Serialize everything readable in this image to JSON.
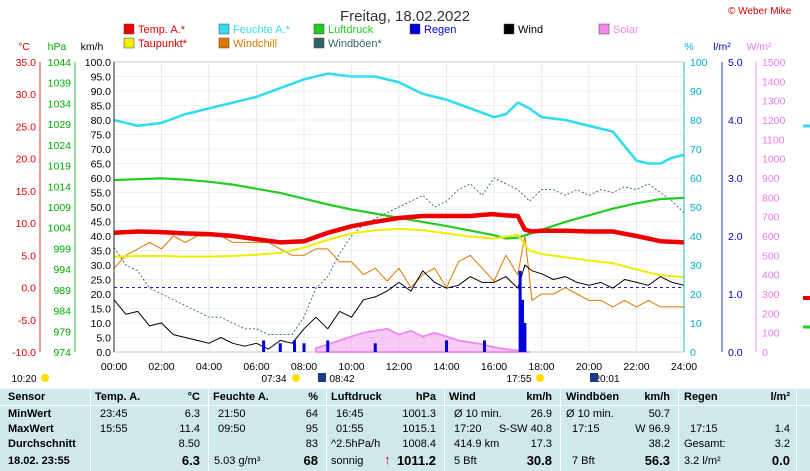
{
  "chart_data": {
    "type": "line",
    "title": "Freitag, 18.02.2022",
    "copyright": "© Weber Mike",
    "unit_labels": {
      "temp": "°C",
      "pressure": "hPa",
      "wind": "km/h",
      "humidity": "%",
      "rain": "l/m²",
      "solar": "W/m²"
    },
    "x_ticks": [
      "00:00",
      "02:00",
      "04:00",
      "06:00",
      "08:00",
      "10:00",
      "12:00",
      "14:00",
      "16:00",
      "18:00",
      "20:00",
      "22:00",
      "24:00"
    ],
    "x_range_hours": [
      0,
      24
    ],
    "axes": {
      "temp": {
        "range": [
          -10,
          35
        ],
        "ticks": [
          "35.0",
          "30.0",
          "25.0",
          "20.0",
          "15.0",
          "10.0",
          "5.0",
          "0.0",
          "-5.0",
          "-10.0"
        ],
        "color": "#dd0000"
      },
      "pressure": {
        "range": [
          974,
          1044
        ],
        "ticks": [
          "1044",
          "1039",
          "1034",
          "1029",
          "1024",
          "1019",
          "1014",
          "1009",
          "1004",
          "999",
          "994",
          "989",
          "984",
          "979",
          "974"
        ],
        "color": "#00aa00"
      },
      "wind": {
        "range": [
          0,
          100
        ],
        "ticks": [
          "100.0",
          "95.0",
          "90.0",
          "85.0",
          "80.0",
          "75.0",
          "70.0",
          "65.0",
          "60.0",
          "55.0",
          "50.0",
          "45.0",
          "40.0",
          "35.0",
          "30.0",
          "25.0",
          "20.0",
          "15.0",
          "10.0",
          "5.0",
          "0.0"
        ],
        "color": "#000000"
      },
      "humidity": {
        "range": [
          0,
          100
        ],
        "ticks": [
          "100",
          "90",
          "80",
          "70",
          "60",
          "50",
          "40",
          "30",
          "20",
          "10",
          "0"
        ],
        "color": "#00aacc"
      },
      "rain": {
        "range": [
          0,
          5
        ],
        "ticks": [
          "5.0",
          "4.0",
          "3.0",
          "2.0",
          "1.0",
          "0.0"
        ],
        "color": "#0000cc"
      },
      "solar": {
        "range": [
          0,
          1500
        ],
        "ticks": [
          "1500",
          "1400",
          "1300",
          "1200",
          "1100",
          "1000",
          "900",
          "800",
          "700",
          "600",
          "500",
          "400",
          "300",
          "200",
          "100",
          "0"
        ],
        "color": "#ee77ee"
      }
    },
    "legend": [
      {
        "name": "Temp. A.*",
        "color": "#ee0000"
      },
      {
        "name": "Feuchte A.*",
        "color": "#33ddee"
      },
      {
        "name": "Luftdruck",
        "color": "#22cc22"
      },
      {
        "name": "Regen",
        "color": "#0000dd"
      },
      {
        "name": "Wind",
        "color": "#000000"
      },
      {
        "name": "Solar",
        "color": "#ee88ee"
      },
      {
        "name": "Taupunkt*",
        "color": "#eeee00"
      },
      {
        "name": "Windchill",
        "color": "#dd7700"
      },
      {
        "name": "Windböen*",
        "color": "#336666"
      }
    ],
    "series": [
      {
        "name": "Temp. A.*",
        "axis": "temp",
        "x": [
          0,
          1,
          2,
          3,
          4,
          5,
          6,
          7,
          8,
          9,
          10,
          11,
          12,
          13,
          14,
          15,
          15.9,
          16.5,
          17,
          17.3,
          17.6,
          18,
          19,
          20,
          21,
          22,
          23,
          24
        ],
        "values": [
          8.5,
          8.7,
          8.6,
          8.4,
          8.3,
          8.0,
          7.5,
          7.0,
          7.2,
          8.5,
          9.5,
          10.2,
          10.8,
          11.1,
          11.1,
          11.1,
          11.4,
          11.2,
          11.1,
          9.0,
          8.7,
          8.8,
          8.8,
          8.7,
          8.7,
          8.0,
          7.2,
          7.0
        ]
      },
      {
        "name": "Feuchte A.*",
        "axis": "humidity",
        "x": [
          0,
          1,
          2,
          3,
          4,
          5,
          6,
          7,
          8,
          9,
          10,
          11,
          12,
          13,
          14,
          15,
          16,
          16.5,
          17,
          17.5,
          18,
          19,
          20,
          21,
          21.6,
          22,
          22.5,
          23,
          23.5,
          24
        ],
        "values": [
          80,
          78,
          79,
          82,
          84,
          86,
          88,
          91,
          94,
          96,
          95,
          95,
          93,
          89,
          87,
          84,
          81,
          82,
          86,
          84,
          81,
          80,
          78,
          76,
          70,
          66,
          65,
          65,
          67,
          68
        ]
      },
      {
        "name": "Luftdruck",
        "axis": "pressure",
        "x": [
          0,
          1,
          2,
          3,
          4,
          5,
          6,
          7,
          8,
          9,
          10,
          11,
          12,
          13,
          14,
          15,
          16,
          16.5,
          17,
          18,
          19,
          20,
          21,
          22,
          23,
          24
        ],
        "values": [
          1015.5,
          1015.7,
          1015.9,
          1015.6,
          1015.1,
          1014.4,
          1013.4,
          1012.4,
          1011.0,
          1009.6,
          1008.4,
          1007.4,
          1006.4,
          1005.4,
          1004.4,
          1003.3,
          1002.2,
          1001.4,
          1001.6,
          1003.5,
          1005.4,
          1007.0,
          1008.6,
          1009.9,
          1010.9,
          1011.2
        ]
      },
      {
        "name": "Taupunkt*",
        "axis": "temp",
        "x": [
          0,
          1,
          2,
          3,
          4,
          5,
          6,
          7,
          8,
          9,
          10,
          11,
          12,
          13,
          14,
          15,
          16,
          17,
          17.5,
          18,
          19,
          20,
          21,
          22,
          23,
          24
        ],
        "values": [
          4.8,
          4.9,
          4.9,
          4.8,
          4.8,
          4.9,
          5.1,
          5.4,
          6.2,
          7.4,
          8.4,
          8.9,
          9.1,
          8.9,
          8.4,
          7.9,
          7.6,
          8.2,
          5.7,
          5.2,
          4.7,
          4.2,
          3.8,
          2.8,
          1.9,
          1.6
        ]
      },
      {
        "name": "Windchill",
        "axis": "temp",
        "x": [
          0,
          0.5,
          1,
          1.5,
          2,
          2.5,
          3,
          3.5,
          4,
          4.5,
          5,
          5.5,
          6,
          6.5,
          7,
          7.5,
          8,
          8.5,
          9,
          9.5,
          10,
          10.5,
          11,
          11.5,
          12,
          12.5,
          13,
          13.5,
          14,
          14.5,
          15,
          15.5,
          16,
          16.5,
          17,
          17.3,
          17.6,
          18,
          18.5,
          19,
          19.5,
          20,
          20.5,
          21,
          21.5,
          22,
          22.5,
          23,
          23.5,
          24
        ],
        "values": [
          3,
          5,
          6,
          7,
          6,
          8,
          7,
          8,
          8,
          8,
          7,
          7,
          7,
          7,
          6,
          5,
          5,
          6,
          6,
          4,
          4,
          2,
          3,
          1,
          3,
          0,
          2,
          3,
          0,
          4,
          5,
          3,
          1,
          5,
          2,
          8,
          -2,
          -1,
          -1,
          0,
          -1,
          -2,
          -2,
          -3,
          -2,
          -3,
          -2,
          -3,
          -3,
          -3
        ]
      },
      {
        "name": "Wind",
        "axis": "wind",
        "x": [
          0,
          0.5,
          1,
          1.5,
          2,
          2.5,
          3,
          3.5,
          4,
          4.5,
          5,
          5.5,
          6,
          6.5,
          7,
          7.5,
          8,
          8.5,
          9,
          9.5,
          10,
          10.5,
          11,
          11.5,
          12,
          12.5,
          13,
          13.5,
          14,
          14.5,
          15,
          15.5,
          16,
          16.5,
          17,
          17.3,
          17.6,
          18,
          18.5,
          19,
          19.5,
          20,
          20.5,
          21,
          21.5,
          22,
          22.5,
          23,
          23.5,
          24
        ],
        "values": [
          18,
          13,
          14,
          9,
          10,
          6,
          5,
          4,
          3,
          5,
          3,
          2,
          3,
          1,
          4,
          3,
          8,
          12,
          8,
          14,
          12,
          18,
          19,
          21,
          24,
          21,
          28,
          24,
          22,
          23,
          26,
          24,
          24,
          26,
          22,
          30,
          28,
          27,
          25,
          26,
          24,
          23,
          24,
          22,
          25,
          24,
          23,
          26,
          24,
          23
        ]
      },
      {
        "name": "Windböen*",
        "axis": "wind",
        "x": [
          0,
          0.5,
          1,
          1.5,
          2,
          2.5,
          3,
          3.5,
          4,
          4.5,
          5,
          5.5,
          6,
          6.5,
          7,
          7.5,
          8,
          8.5,
          9,
          9.5,
          10,
          10.5,
          11,
          11.5,
          12,
          12.5,
          13,
          13.5,
          14,
          14.5,
          15,
          15.5,
          16,
          16.5,
          17,
          17.5,
          18,
          18.5,
          19,
          19.5,
          20,
          20.5,
          21,
          21.5,
          22,
          22.5,
          23,
          23.5,
          24
        ],
        "values": [
          36,
          30,
          28,
          22,
          20,
          18,
          16,
          14,
          12,
          12,
          10,
          8,
          8,
          6,
          6,
          6,
          12,
          22,
          26,
          34,
          40,
          44,
          46,
          48,
          50,
          52,
          54,
          50,
          52,
          56,
          58,
          54,
          60,
          58,
          56,
          52,
          56,
          56,
          54,
          56,
          54,
          56,
          55,
          57,
          56,
          58,
          55,
          52,
          48
        ]
      },
      {
        "name": "Solar",
        "axis": "solar",
        "x": [
          8.5,
          9,
          9.5,
          10,
          10.5,
          11,
          11.5,
          12,
          12.5,
          13,
          13.5,
          14,
          14.5,
          15,
          15.5,
          16,
          16.5,
          17,
          17.5
        ],
        "values": [
          20,
          40,
          60,
          80,
          100,
          110,
          120,
          90,
          110,
          80,
          100,
          80,
          60,
          50,
          40,
          25,
          15,
          8,
          0
        ]
      },
      {
        "name": "Regen",
        "axis": "rain",
        "type": "bar",
        "x": [
          6.3,
          7.0,
          7.6,
          8.0,
          9.0,
          11.0,
          14.0,
          15.6,
          17.1,
          17.2,
          17.3
        ],
        "values": [
          0.2,
          0.15,
          0.2,
          0.15,
          0.2,
          0.15,
          0.2,
          0.2,
          1.4,
          0.9,
          0.5
        ]
      }
    ],
    "reference_lines": [
      {
        "axis": "temp",
        "value": 0,
        "style": "dashed",
        "color": "#0000aa"
      }
    ],
    "time_markers": {
      "sunrise": "07:34",
      "sunset": "17:55",
      "moonset": "08:42",
      "moonrise": "20:01",
      "left_time": "10:20"
    }
  },
  "table": {
    "row_labels": [
      "Sensor",
      "MinWert",
      "MaxWert",
      "Durchschnitt",
      "18.02. 23:55"
    ],
    "temp": {
      "header": "Temp. A.",
      "unit": "°C",
      "min": {
        "time": "23:45",
        "value": "6.3"
      },
      "max": {
        "time": "15:55",
        "value": "11.4"
      },
      "avg": "8.50",
      "current": "6.3"
    },
    "humidity": {
      "header": "Feuchte A.",
      "unit": "%",
      "min": {
        "time": "21:50",
        "value": "64"
      },
      "max": {
        "time": "09:50",
        "value": "95"
      },
      "avg": "83",
      "extra": "5.03 g/m³",
      "current": "68"
    },
    "pressure": {
      "header": "Luftdruck",
      "unit": "hPa",
      "min": {
        "time": "16:45",
        "value": "1001.3"
      },
      "max": {
        "time": "01:55",
        "value": "1015.1"
      },
      "avg_label": "^2.5hPa/h",
      "avg": "1008.4",
      "extra": "sonnig",
      "current": "1011.2"
    },
    "wind": {
      "header": "Wind",
      "unit": "km/h",
      "min_label": "Ø 10 min.",
      "min_value": "26.9",
      "max_time": "17:20",
      "max_dir": "S-SW 40.8",
      "avg_label": "414.9 km",
      "avg": "17.3",
      "bft": "5 Bft",
      "current": "30.8"
    },
    "gust": {
      "header": "Windböen",
      "unit": "km/h",
      "min_label": "Ø 10 min.",
      "min_value": "50.7",
      "max_time": "17:15",
      "max_dir": "W 96.9",
      "avg": "38.2",
      "bft": "7 Bft",
      "current": "56.3"
    },
    "rain": {
      "header": "Regen",
      "unit": "l/m²",
      "max_time": "17:15",
      "max_value": "1.4",
      "total_label": "Gesamt:",
      "total": "3.2",
      "extra": "3.2 l/m²",
      "current": "0.0"
    }
  }
}
